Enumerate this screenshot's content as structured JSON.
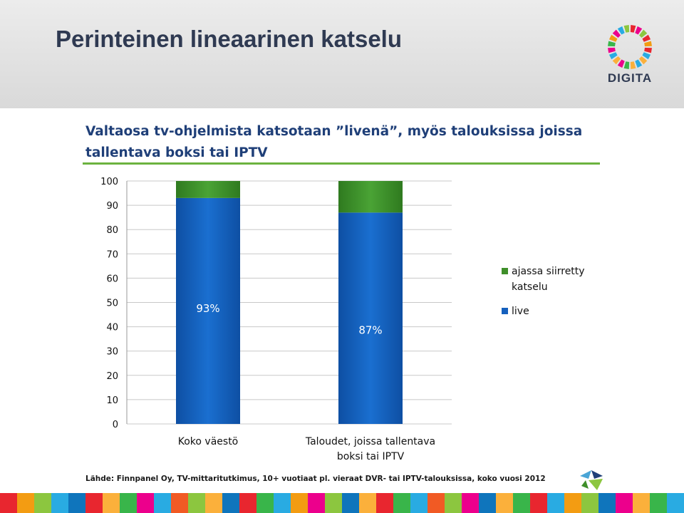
{
  "slide": {
    "title": "Perinteinen lineaarinen katselu",
    "logo_text": "DIGITA"
  },
  "chart_data": {
    "type": "bar",
    "stacked": true,
    "title": "Valtaosa tv-ohjelmista katsotaan ”livenä”, myös talouksissa joissa tallentava boksi tai IPTV",
    "categories": [
      "Koko väestö",
      "Taloudet, joissa tallentava boksi tai IPTV"
    ],
    "series": [
      {
        "name": "live",
        "values": [
          93,
          87
        ],
        "labels": [
          "93%",
          "87%"
        ],
        "color": "#1560bd"
      },
      {
        "name": "ajassa siirretty katselu",
        "values": [
          7,
          13
        ],
        "color": "#3f8f2a"
      }
    ],
    "ylim": [
      0,
      100
    ],
    "yticks": [
      0,
      10,
      20,
      30,
      40,
      50,
      60,
      70,
      80,
      90,
      100
    ],
    "grid": true,
    "legend": "right",
    "xlabel": "",
    "ylabel": ""
  },
  "source": "Lähde: Finnpanel Oy, TV-mittaritutkimus, 10+ vuotiaat pl. vieraat DVR- tai IPTV-talouksissa, koko vuosi 2012",
  "colors": {
    "title": "#2f3a52",
    "heading": "#1f3f78",
    "rule": "#6cb33f",
    "stripe": [
      "#e8262f",
      "#f39c12",
      "#8cc63f",
      "#29abe2",
      "#0f75bc",
      "#e8262f",
      "#fbb03b",
      "#39b54a",
      "#ec008c",
      "#29abe2",
      "#f15a24",
      "#8cc63f",
      "#fbb03b",
      "#0f75bc",
      "#e8262f",
      "#39b54a",
      "#29abe2",
      "#f39c12",
      "#ec008c",
      "#8cc63f",
      "#0f75bc",
      "#fbb03b",
      "#e8262f",
      "#39b54a",
      "#29abe2",
      "#f15a24",
      "#8cc63f",
      "#ec008c",
      "#0f75bc",
      "#fbb03b",
      "#39b54a",
      "#e8262f",
      "#29abe2",
      "#f39c12",
      "#8cc63f",
      "#0f75bc",
      "#ec008c",
      "#fbb03b",
      "#39b54a",
      "#29abe2"
    ]
  }
}
